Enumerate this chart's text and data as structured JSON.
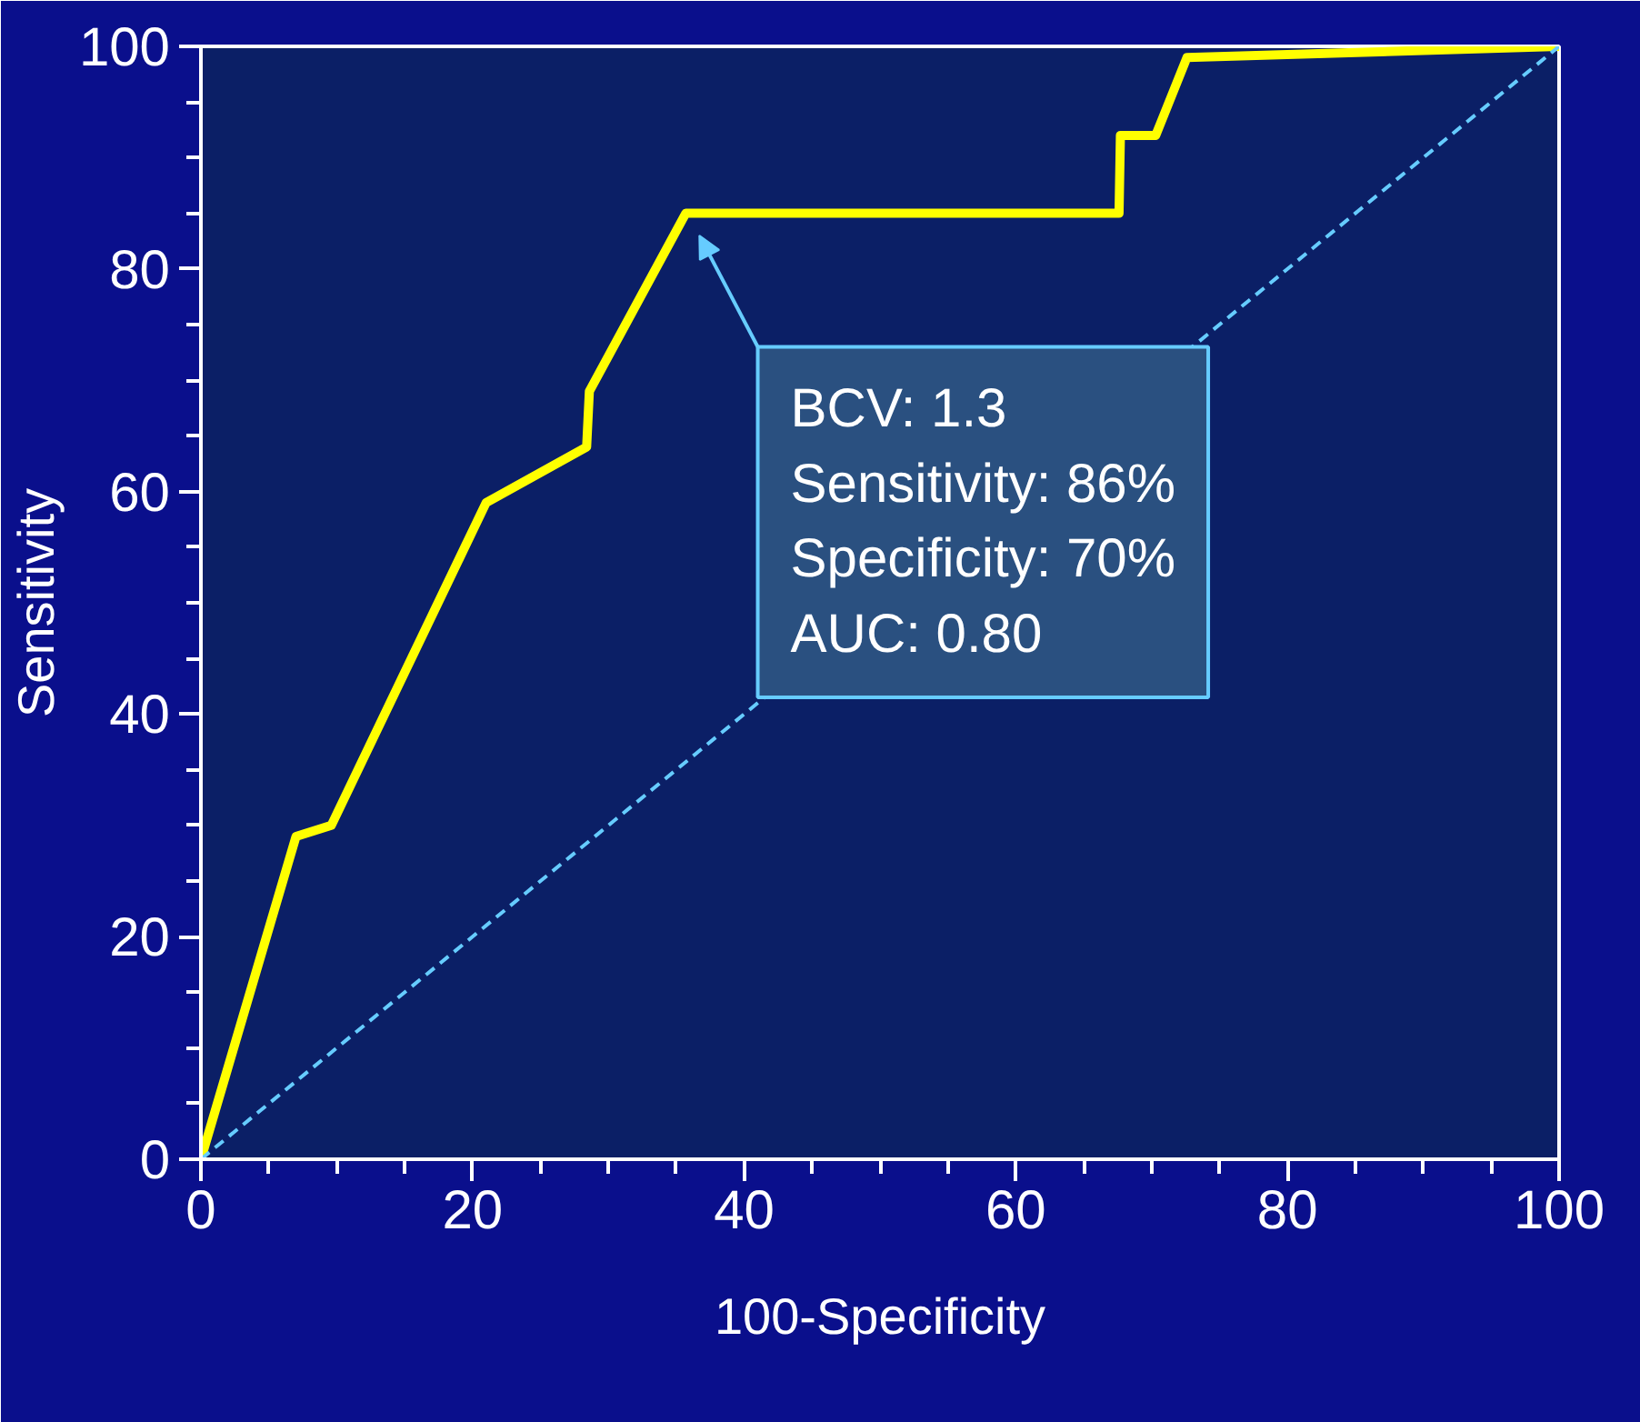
{
  "chart_data": {
    "type": "line",
    "xlabel": "100-Specificity",
    "ylabel": "Sensitivity",
    "xlim": [
      0,
      100
    ],
    "ylim": [
      0,
      100
    ],
    "xticks": [
      0,
      {
        "value": 5,
        "label": null
      },
      {
        "value": 10,
        "label": null
      },
      {
        "value": 15,
        "label": null
      },
      20,
      {
        "value": 25,
        "label": null
      },
      {
        "value": 30,
        "label": null
      },
      {
        "value": 35,
        "label": null
      },
      40,
      {
        "value": 45,
        "label": null
      },
      {
        "value": 50,
        "label": null
      },
      {
        "value": 55,
        "label": null
      },
      60,
      {
        "value": 65,
        "label": null
      },
      {
        "value": 70,
        "label": null
      },
      {
        "value": 75,
        "label": null
      },
      80,
      {
        "value": 85,
        "label": null
      },
      {
        "value": 90,
        "label": null
      },
      {
        "value": 95,
        "label": null
      },
      100
    ],
    "yticks": [
      0,
      {
        "value": 5,
        "label": null
      },
      {
        "value": 10,
        "label": null
      },
      {
        "value": 15,
        "label": null
      },
      20,
      {
        "value": 25,
        "label": null
      },
      {
        "value": 30,
        "label": null
      },
      {
        "value": 35,
        "label": null
      },
      40,
      {
        "value": 45,
        "label": null
      },
      {
        "value": 50,
        "label": null
      },
      {
        "value": 55,
        "label": null
      },
      60,
      {
        "value": 65,
        "label": null
      },
      {
        "value": 70,
        "label": null
      },
      {
        "value": 75,
        "label": null
      },
      80,
      {
        "value": 85,
        "label": null
      },
      {
        "value": 90,
        "label": null
      },
      {
        "value": 95,
        "label": null
      },
      100
    ],
    "series": [
      {
        "color": "#ffff00",
        "x": [
          0,
          7,
          9.6,
          21,
          28.4,
          28.6,
          35.7,
          67.6,
          67.7,
          70.3,
          72.6,
          100
        ],
        "values": [
          0,
          29,
          30,
          59,
          64,
          69,
          85,
          85,
          92,
          92,
          99,
          100
        ]
      },
      {
        "color": "#66ccff",
        "line_style": "dashed",
        "x": [
          0,
          100
        ],
        "values": [
          0,
          100
        ]
      }
    ],
    "annotations": [
      "BCV: 1.3\nSensitivity: 86%\nSpecificity: 70%\nAUC: 0.80"
    ],
    "grid": false,
    "marker": "none"
  }
}
